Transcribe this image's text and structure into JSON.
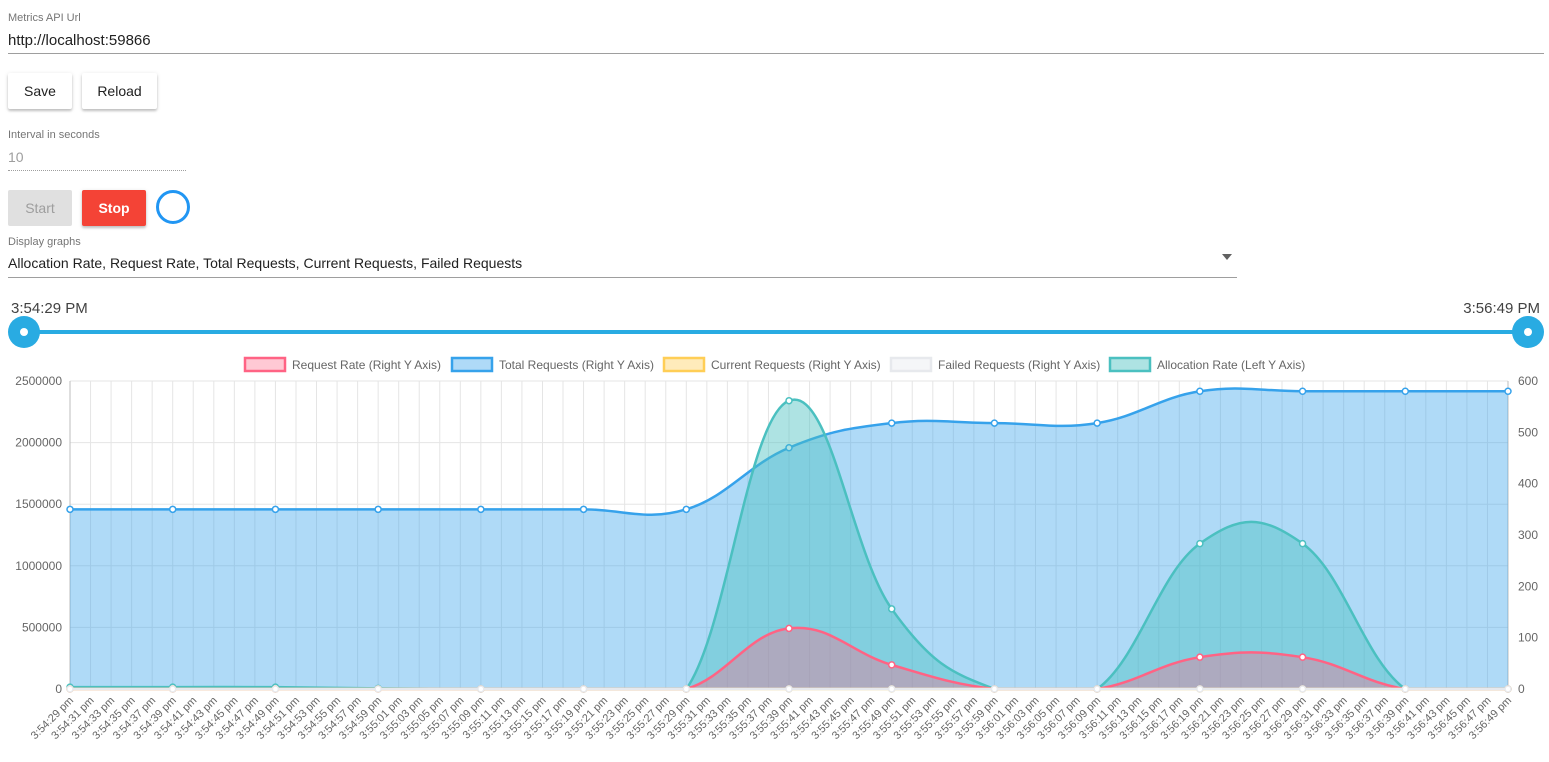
{
  "api": {
    "label": "Metrics API Url",
    "value": "http://localhost:59866"
  },
  "buttons": {
    "save": "Save",
    "reload": "Reload",
    "start": "Start",
    "stop": "Stop"
  },
  "interval": {
    "label": "Interval in seconds",
    "placeholder": "10"
  },
  "display": {
    "label": "Display graphs",
    "value": "Allocation Rate, Request Rate, Total Requests, Current Requests, Failed Requests"
  },
  "range": {
    "start": "3:54:29 PM",
    "end": "3:56:49 PM"
  },
  "colors": {
    "accent": "#29abe2",
    "stop": "#f44336",
    "spinner": "#2196f3"
  },
  "chart_data": {
    "type": "line",
    "categories": [
      "3:54:29 pm",
      "3:54:31 pm",
      "3:54:33 pm",
      "3:54:35 pm",
      "3:54:37 pm",
      "3:54:39 pm",
      "3:54:41 pm",
      "3:54:43 pm",
      "3:54:45 pm",
      "3:54:47 pm",
      "3:54:49 pm",
      "3:54:51 pm",
      "3:54:53 pm",
      "3:54:55 pm",
      "3:54:57 pm",
      "3:54:59 pm",
      "3:55:01 pm",
      "3:55:03 pm",
      "3:55:05 pm",
      "3:55:07 pm",
      "3:55:09 pm",
      "3:55:11 pm",
      "3:55:13 pm",
      "3:55:15 pm",
      "3:55:17 pm",
      "3:55:19 pm",
      "3:55:21 pm",
      "3:55:23 pm",
      "3:55:25 pm",
      "3:55:27 pm",
      "3:55:29 pm",
      "3:55:31 pm",
      "3:55:33 pm",
      "3:55:35 pm",
      "3:55:37 pm",
      "3:55:39 pm",
      "3:55:41 pm",
      "3:55:43 pm",
      "3:55:45 pm",
      "3:55:47 pm",
      "3:55:49 pm",
      "3:55:51 pm",
      "3:55:53 pm",
      "3:55:55 pm",
      "3:55:57 pm",
      "3:55:59 pm",
      "3:56:01 pm",
      "3:56:03 pm",
      "3:56:05 pm",
      "3:56:07 pm",
      "3:56:09 pm",
      "3:56:11 pm",
      "3:56:13 pm",
      "3:56:15 pm",
      "3:56:17 pm",
      "3:56:19 pm",
      "3:56:21 pm",
      "3:56:23 pm",
      "3:56:25 pm",
      "3:56:27 pm",
      "3:56:29 pm",
      "3:56:31 pm",
      "3:56:33 pm",
      "3:56:35 pm",
      "3:56:37 pm",
      "3:56:39 pm",
      "3:56:41 pm",
      "3:56:43 pm",
      "3:56:45 pm",
      "3:56:47 pm",
      "3:56:49 pm"
    ],
    "left_axis": {
      "min": 0,
      "max": 2500000,
      "ticks": [
        0,
        500000,
        1000000,
        1500000,
        2000000,
        2500000
      ]
    },
    "right_axis": {
      "min": 0,
      "max": 600,
      "ticks": [
        0,
        100,
        200,
        300,
        400,
        500,
        600
      ]
    },
    "grid": true,
    "legend_position": "top",
    "series": [
      {
        "name": "Request Rate (Right Y Axis)",
        "axis": "right",
        "color": "#ff6384",
        "fill": "rgba(255,99,132,0.35)",
        "points": [
          [
            0,
            0
          ],
          [
            5,
            0
          ],
          [
            10,
            0
          ],
          [
            15,
            0
          ],
          [
            20,
            0
          ],
          [
            25,
            0
          ],
          [
            30,
            0
          ],
          [
            35,
            118
          ],
          [
            40,
            47
          ],
          [
            45,
            0
          ],
          [
            50,
            0
          ],
          [
            55,
            62
          ],
          [
            60,
            62
          ],
          [
            65,
            0
          ],
          [
            70,
            0
          ]
        ]
      },
      {
        "name": "Total Requests (Right Y Axis)",
        "axis": "right",
        "color": "#36a2eb",
        "fill": "rgba(54,162,235,0.4)",
        "points": [
          [
            0,
            350
          ],
          [
            5,
            350
          ],
          [
            10,
            350
          ],
          [
            15,
            350
          ],
          [
            20,
            350
          ],
          [
            25,
            350
          ],
          [
            30,
            350
          ],
          [
            35,
            470
          ],
          [
            40,
            518
          ],
          [
            45,
            518
          ],
          [
            50,
            518
          ],
          [
            55,
            580
          ],
          [
            60,
            580
          ],
          [
            65,
            580
          ],
          [
            70,
            580
          ]
        ]
      },
      {
        "name": "Current Requests (Right Y Axis)",
        "axis": "right",
        "color": "#ffce56",
        "fill": "rgba(255,206,86,0.4)",
        "points": [
          [
            0,
            0
          ],
          [
            5,
            0
          ],
          [
            10,
            0
          ],
          [
            15,
            0
          ],
          [
            20,
            0
          ],
          [
            25,
            0
          ],
          [
            30,
            0
          ],
          [
            35,
            0
          ],
          [
            40,
            0
          ],
          [
            45,
            0
          ],
          [
            50,
            0
          ],
          [
            55,
            0
          ],
          [
            60,
            0
          ],
          [
            65,
            0
          ],
          [
            70,
            0
          ]
        ]
      },
      {
        "name": "Failed Requests (Right Y Axis)",
        "axis": "right",
        "color": "#e7e9ed",
        "fill": "rgba(231,233,237,0.4)",
        "points": [
          [
            0,
            0
          ],
          [
            5,
            0
          ],
          [
            10,
            0
          ],
          [
            15,
            0
          ],
          [
            20,
            0
          ],
          [
            25,
            0
          ],
          [
            30,
            0
          ],
          [
            35,
            0
          ],
          [
            40,
            0
          ],
          [
            45,
            0
          ],
          [
            50,
            0
          ],
          [
            55,
            0
          ],
          [
            60,
            0
          ],
          [
            65,
            0
          ],
          [
            70,
            0
          ]
        ]
      },
      {
        "name": "Allocation Rate (Left Y Axis)",
        "axis": "left",
        "color": "#4bc0c0",
        "fill": "rgba(75,192,192,0.45)",
        "points": [
          [
            0,
            15000
          ],
          [
            5,
            15000
          ],
          [
            10,
            15000
          ],
          [
            15,
            5000
          ],
          [
            20,
            0
          ],
          [
            25,
            0
          ],
          [
            30,
            0
          ],
          [
            35,
            2340000
          ],
          [
            40,
            650000
          ],
          [
            45,
            0
          ],
          [
            50,
            0
          ],
          [
            55,
            1180000
          ],
          [
            60,
            1180000
          ],
          [
            65,
            0
          ],
          [
            70,
            0
          ]
        ]
      }
    ]
  }
}
